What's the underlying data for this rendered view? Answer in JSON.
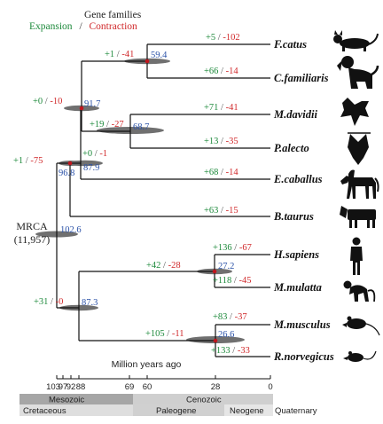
{
  "legend": {
    "title": "Gene families",
    "expansion_label": "Expansion",
    "separator": "/",
    "contraction_label": "Contraction"
  },
  "colors": {
    "expansion": "#1e8a3c",
    "contraction": "#d0282a",
    "node_age": "#2b52a8",
    "branch": "#111111",
    "ellipse": "#707070",
    "node_dot": "#c0161d",
    "mesozoic": "#a6a6a6",
    "cenozoic": "#cfcfcf",
    "cretaceous": "#dedede",
    "paleogene": "#d0d0d0",
    "neogene": "#e6e6e6",
    "quaternary": "#ffffff"
  },
  "root": {
    "name": "MRCA",
    "families": "(11,957)"
  },
  "species": [
    {
      "id": "fcatus",
      "name": "F.catus",
      "gain": "+5",
      "loss": "-102",
      "icon": "cat-icon"
    },
    {
      "id": "cfamiliaris",
      "name": "C.familiaris",
      "gain": "+66",
      "loss": "-14",
      "icon": "dog-icon"
    },
    {
      "id": "mdavidii",
      "name": "M.davidii",
      "gain": "+71",
      "loss": "-41",
      "icon": "flying-bat-icon"
    },
    {
      "id": "palecto",
      "name": "P.alecto",
      "gain": "+13",
      "loss": "-35",
      "icon": "hanging-bat-icon"
    },
    {
      "id": "ecaballus",
      "name": "E.caballus",
      "gain": "+68",
      "loss": "-14",
      "icon": "horse-icon"
    },
    {
      "id": "btaurus",
      "name": "B.taurus",
      "gain": "+63",
      "loss": "-15",
      "icon": "cow-icon"
    },
    {
      "id": "hsapiens",
      "name": "H.sapiens",
      "gain": "+136",
      "loss": "-67",
      "icon": "human-icon"
    },
    {
      "id": "mmulatta",
      "name": "M.mulatta",
      "gain": "+118",
      "loss": "-45",
      "icon": "monkey-icon"
    },
    {
      "id": "mmusculus",
      "name": "M.musculus",
      "gain": "+83",
      "loss": "-37",
      "icon": "mouse-icon"
    },
    {
      "id": "rnorvegicus",
      "name": "R.norvegicus",
      "gain": "+133",
      "loss": "-33",
      "icon": "rat-icon"
    }
  ],
  "nodes": [
    {
      "id": "carnivora",
      "age": "59.4",
      "gain": "+1",
      "loss": "-41"
    },
    {
      "id": "bats",
      "age": "68.7",
      "gain": "+19",
      "loss": "-27"
    },
    {
      "id": "chiro_carn",
      "age": "91.7",
      "gain": "+0",
      "loss": "-10"
    },
    {
      "id": "with_horse",
      "age": "87.9",
      "gain": "+0",
      "loss": "-1"
    },
    {
      "id": "laurasiatheria",
      "age": "96.8",
      "gain": "+1",
      "loss": "-75"
    },
    {
      "id": "root",
      "age": "102.6"
    },
    {
      "id": "primates",
      "age": "27.2",
      "gain": "+42",
      "loss": "-28"
    },
    {
      "id": "rodents",
      "age": "26.6",
      "gain": "+105",
      "loss": "-11"
    },
    {
      "id": "euarchontoglires",
      "age": "87.3",
      "gain": "+31",
      "loss": "-0"
    }
  ],
  "timescale": {
    "title": "Million years ago",
    "ticks": [
      "103",
      "97",
      "92",
      "88",
      "69",
      "60",
      "28",
      "0"
    ],
    "eras": [
      "Mesozoic",
      "Cenozoic"
    ],
    "periods": [
      "Cretaceous",
      "Paleogene",
      "Neogene",
      "Quaternary"
    ]
  }
}
